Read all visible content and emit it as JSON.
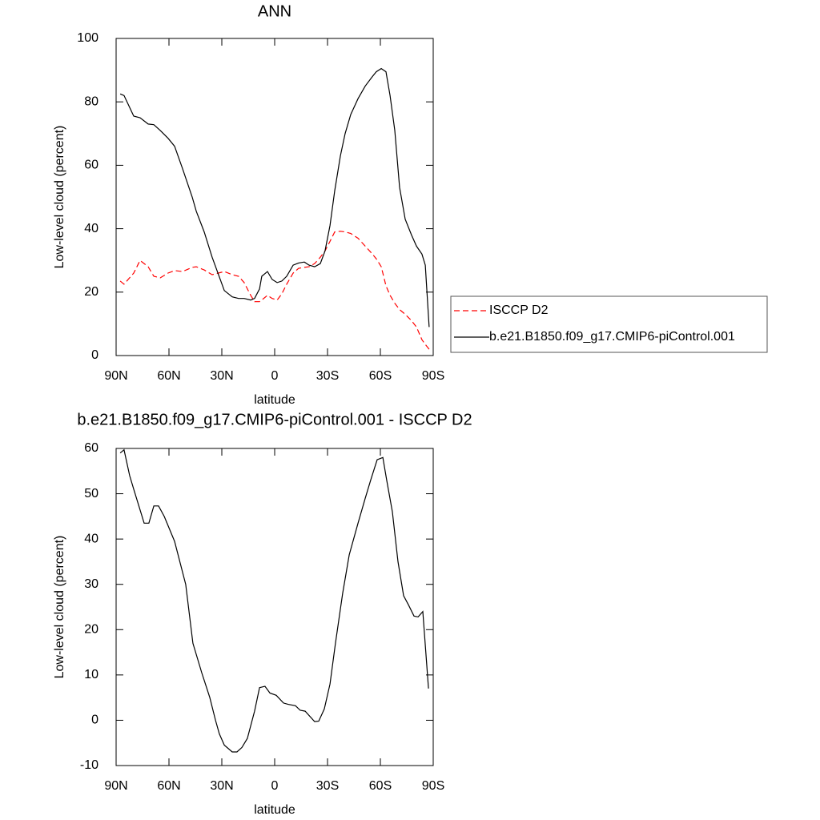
{
  "chart_data": [
    {
      "type": "line",
      "title": "ANN",
      "x_label": "latitude",
      "y_label": "Low-level cloud (percent)",
      "x": [
        87.7,
        85.5,
        80,
        76.4,
        71.8,
        68.6,
        65,
        60.5,
        56.8,
        52.3,
        46.8,
        44.5,
        40,
        35.5,
        28.6,
        24.1,
        20.5,
        17.3,
        13.6,
        11.4,
        8.6,
        7.3,
        4.1,
        1.4,
        -1.4,
        -4.1,
        -6.8,
        -10.5,
        -13.6,
        -16.8,
        -19.5,
        -22.7,
        -25.9,
        -28.6,
        -31.4,
        -34.1,
        -37.3,
        -40,
        -43.2,
        -47.3,
        -51.4,
        -55.5,
        -57.7,
        -60.5,
        -63.2,
        -65.5,
        -68.2,
        -70.9,
        -74.1,
        -77.7,
        -80.5,
        -83.6,
        -85.5,
        -87.7
      ],
      "series": [
        {
          "name": "ISCCP D2",
          "color": "#ff0000",
          "dash": true,
          "values": [
            23.5,
            22.5,
            26,
            30,
            28,
            25,
            24.5,
            26,
            26.8,
            26.5,
            27.8,
            28,
            27,
            25.5,
            26.5,
            25.5,
            25,
            23,
            19,
            17,
            17,
            17.5,
            19,
            18,
            17.5,
            19.5,
            22.5,
            26,
            27.5,
            27.8,
            28,
            29,
            31,
            33,
            36,
            39,
            39.2,
            39,
            38.5,
            37,
            34.5,
            32,
            30.5,
            28,
            22,
            19,
            16.5,
            14.5,
            13,
            11,
            9,
            5,
            3.5,
            2
          ]
        },
        {
          "name": "b.e21.B1850.f09_g17.CMIP6-piControl.001",
          "color": "#000000",
          "dash": false,
          "values": [
            82.5,
            82,
            75.5,
            75,
            73,
            72.8,
            71,
            68.5,
            66,
            59,
            50,
            45.5,
            39,
            31,
            20.5,
            18.5,
            18,
            18,
            17.5,
            18,
            21,
            25,
            26.5,
            24,
            23,
            23.5,
            25,
            28.5,
            29.2,
            29.5,
            28.5,
            28,
            29,
            33,
            41,
            52,
            63,
            70,
            76,
            81,
            85,
            88,
            89.5,
            90.5,
            89.5,
            82,
            71,
            53,
            43,
            38,
            34.5,
            32,
            28.5,
            9
          ]
        }
      ],
      "xlim": [
        90,
        -90
      ],
      "xticks": [
        {
          "value": 90,
          "label": "90N"
        },
        {
          "value": 60,
          "label": "60N"
        },
        {
          "value": 30,
          "label": "30N"
        },
        0,
        {
          "value": -30,
          "label": "30S"
        },
        {
          "value": -60,
          "label": "60S"
        },
        {
          "value": -90,
          "label": "90S"
        }
      ],
      "ylim": [
        0,
        100
      ],
      "yticks": [
        0,
        20,
        40,
        60,
        80,
        100
      ],
      "legend": "right"
    },
    {
      "type": "line",
      "title": "b.e21.B1850.f09_g17.CMIP6-piControl.001 - ISCCP D2",
      "x_label": "latitude",
      "y_label": "Low-level cloud (percent)",
      "x": [
        87.7,
        85.5,
        82.3,
        80,
        74.1,
        71.4,
        68.6,
        65.9,
        62.7,
        56.8,
        50.5,
        46.4,
        41.4,
        36.8,
        33.6,
        31.4,
        28.6,
        24.1,
        21.4,
        18.6,
        15.5,
        11.4,
        8.6,
        5.5,
        2.7,
        -0.9,
        -5,
        -7.7,
        -11.8,
        -14.5,
        -17.3,
        -22.7,
        -25,
        -28.2,
        -31.4,
        -34.5,
        -38.6,
        -42.3,
        -47.3,
        -51.4,
        -54.5,
        -58.2,
        -61.4,
        -63.6,
        -66.8,
        -70,
        -73.2,
        -75.9,
        -79.1,
        -81.4,
        -84.1,
        -87.3
      ],
      "series": [
        {
          "color": "#000000",
          "dash": false,
          "values": [
            59,
            59.7,
            54,
            51,
            43.5,
            43.5,
            47.3,
            47.3,
            45,
            39.5,
            30,
            17,
            10.5,
            5,
            0,
            -3,
            -5.5,
            -7,
            -7,
            -6,
            -4,
            2,
            7.2,
            7.5,
            6,
            5.5,
            3.8,
            3.5,
            3.2,
            2.2,
            2,
            -0.3,
            -0.2,
            2.5,
            8,
            17,
            28,
            36.5,
            43.5,
            49,
            53,
            57.5,
            58,
            53,
            46,
            35,
            27.5,
            25.5,
            23,
            22.8,
            24,
            7
          ]
        }
      ],
      "xlim": [
        90,
        -90
      ],
      "xticks": [
        {
          "value": 90,
          "label": "90N"
        },
        {
          "value": 60,
          "label": "60N"
        },
        {
          "value": 30,
          "label": "30N"
        },
        0,
        {
          "value": -30,
          "label": "30S"
        },
        {
          "value": -60,
          "label": "60S"
        },
        {
          "value": -90,
          "label": "90S"
        }
      ],
      "ylim": [
        -10,
        60
      ],
      "yticks": [
        -10,
        0,
        10,
        20,
        30,
        40,
        50,
        60
      ]
    }
  ]
}
